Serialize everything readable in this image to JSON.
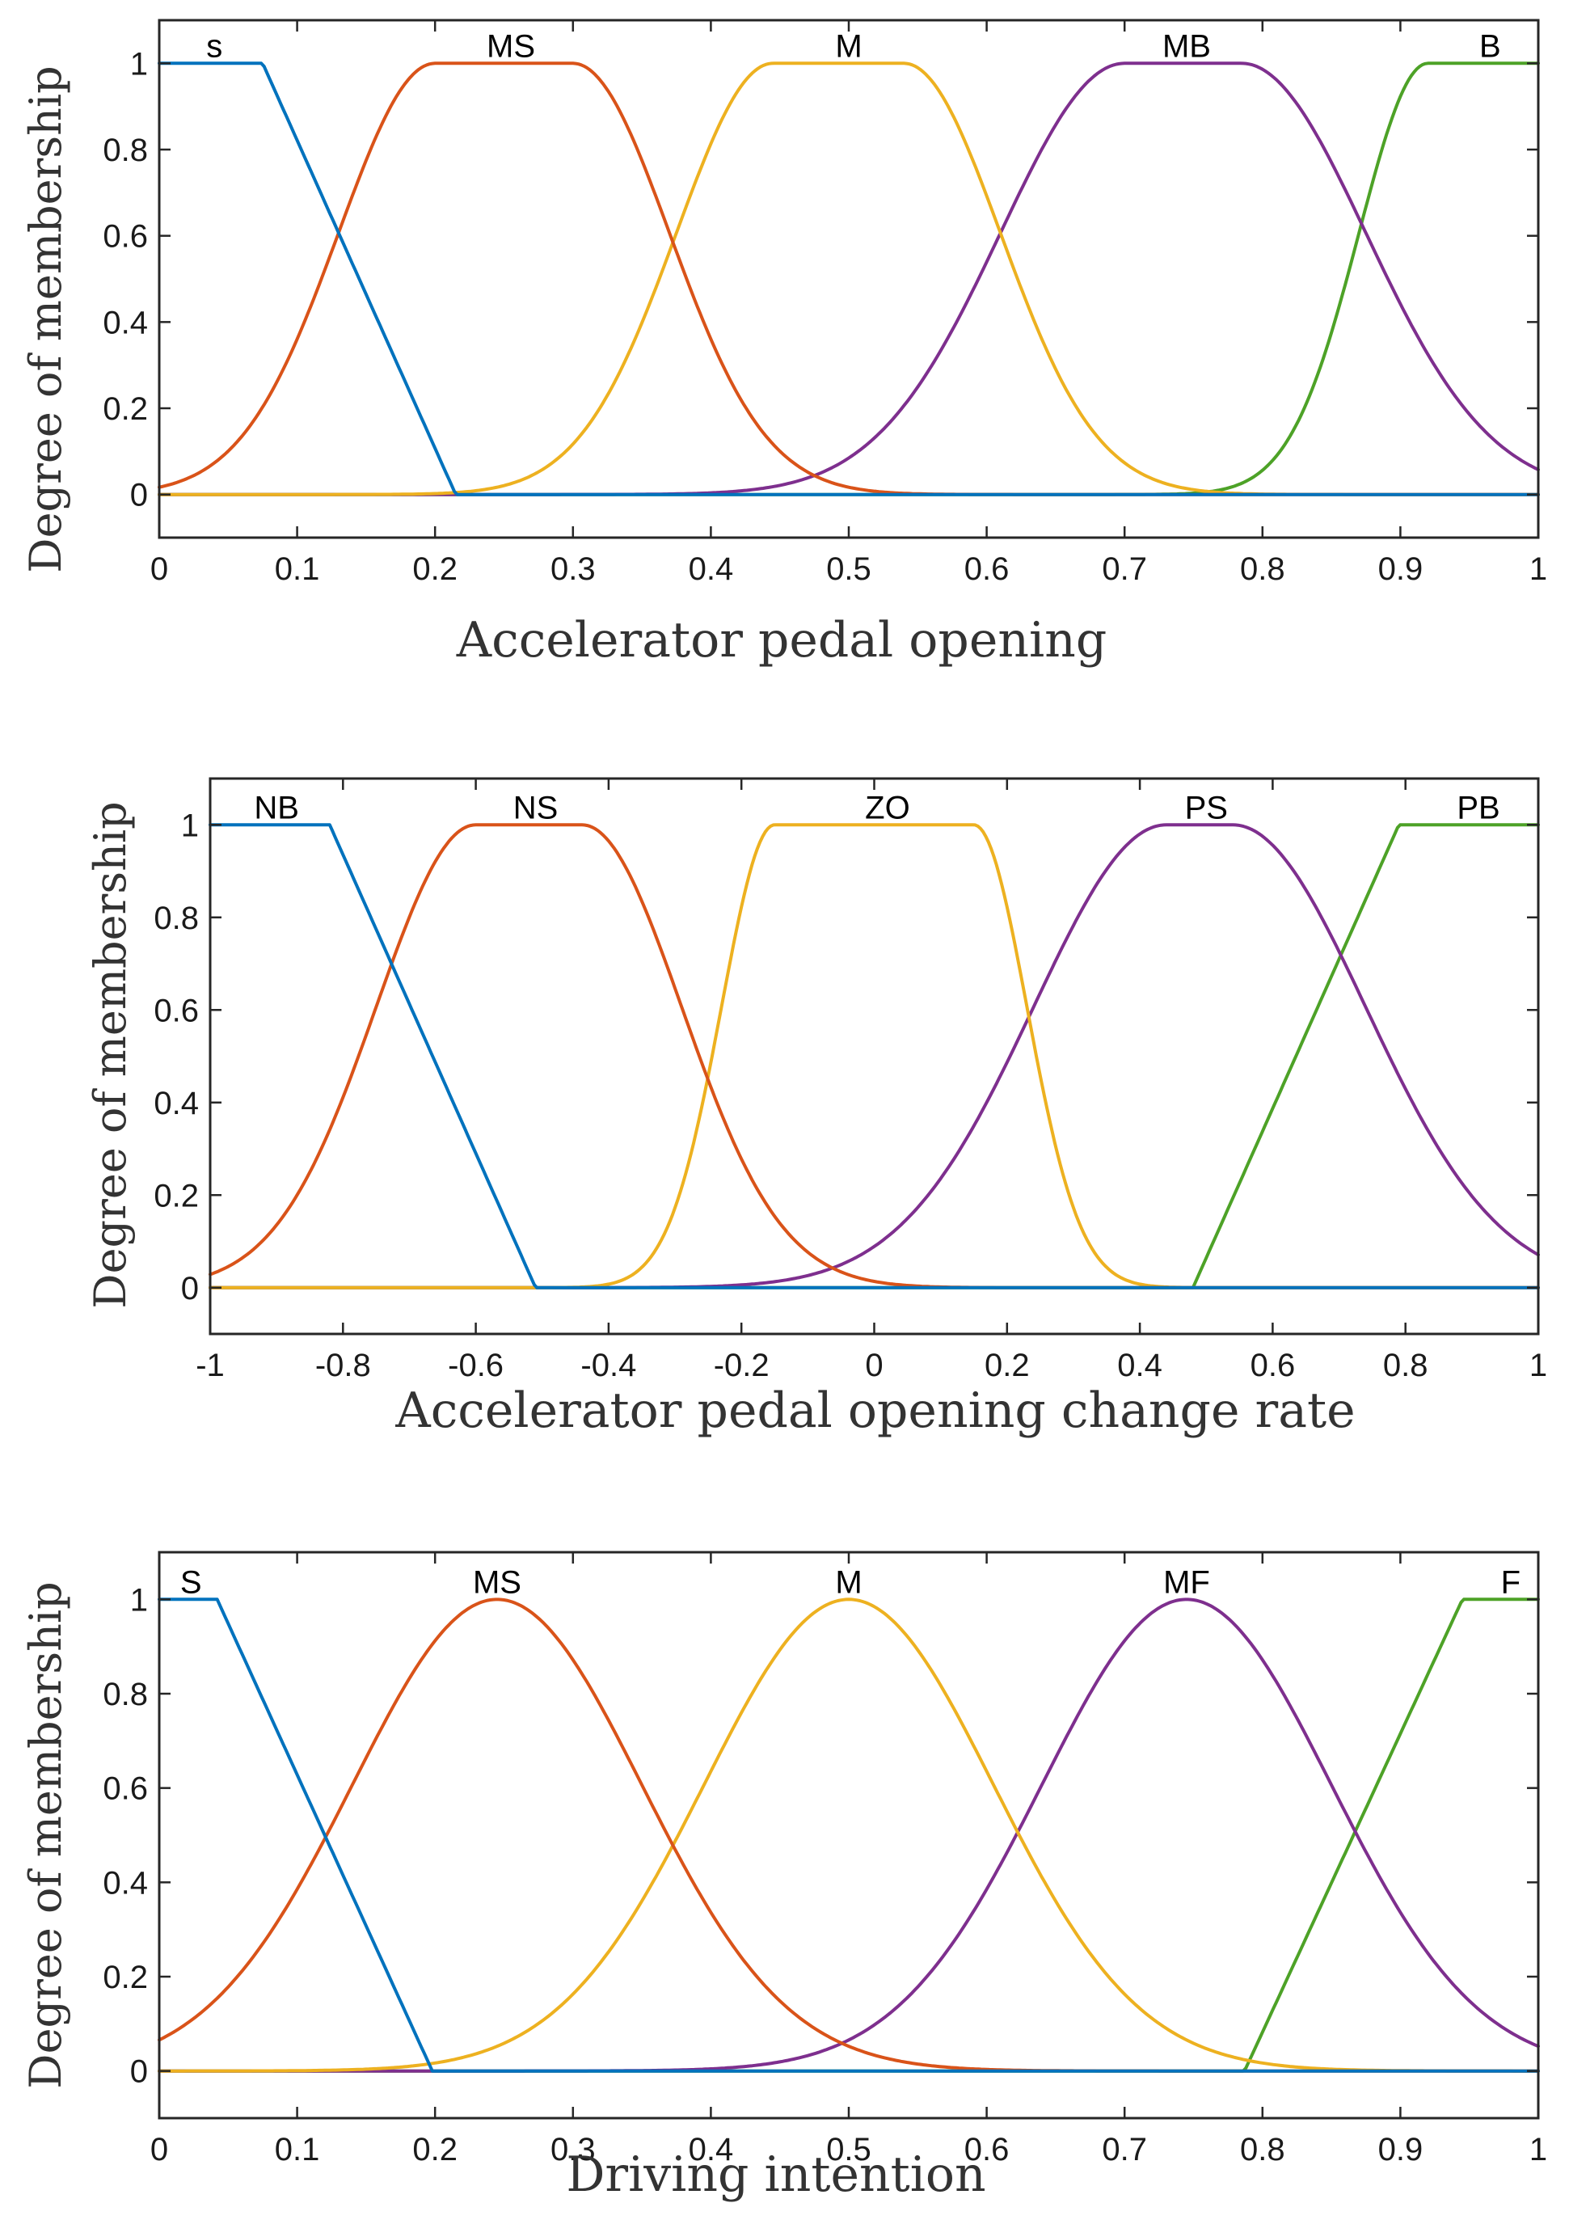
{
  "chart_data": [
    {
      "type": "line",
      "chart_kind": "fuzzy membership functions",
      "xlabel": "Accelerator pedal opening",
      "ylabel": "Degree of membership",
      "xlim": [
        0,
        1
      ],
      "ylim": [
        -0.1,
        1.1
      ],
      "xticks": [
        0,
        0.1,
        0.2,
        0.3,
        0.4,
        0.5,
        0.6,
        0.7,
        0.8,
        0.9,
        1
      ],
      "xtick_labels": [
        "0",
        "0.1",
        "0.2",
        "0.3",
        "0.4",
        "0.5",
        "0.6",
        "0.7",
        "0.8",
        "0.9",
        "1"
      ],
      "yticks": [
        0,
        0.2,
        0.4,
        0.6,
        0.8,
        1
      ],
      "ytick_labels": [
        "0",
        "0.2",
        "0.4",
        "0.6",
        "0.8",
        "1"
      ],
      "series": [
        {
          "name": "s",
          "color": "#0072BD",
          "mf": "linear-z",
          "params": [
            0.075,
            0.215
          ],
          "label_at": 0.04
        },
        {
          "name": "MS",
          "color": "#D95319",
          "mf": "gauss-flat",
          "params": [
            0.2,
            0.3,
            0.07,
            0.07
          ],
          "label_at": 0.255
        },
        {
          "name": "M",
          "color": "#EDB120",
          "mf": "gauss-flat",
          "params": [
            0.445,
            0.54,
            0.07,
            0.07
          ],
          "label_at": 0.5
        },
        {
          "name": "MB",
          "color": "#7E2F8E",
          "mf": "gauss-flat",
          "params": [
            0.7,
            0.785,
            0.09,
            0.09
          ],
          "label_at": 0.745
        },
        {
          "name": "B",
          "color": "#4DA227",
          "mf": "gauss-flat",
          "params": [
            0.92,
            1.1,
            0.05,
            0.05
          ],
          "label_at": 0.965
        }
      ]
    },
    {
      "type": "line",
      "chart_kind": "fuzzy membership functions",
      "xlabel": "Accelerator pedal opening change rate",
      "ylabel": "Degree of membership",
      "xlim": [
        -1,
        1
      ],
      "ylim": [
        -0.1,
        1.1
      ],
      "xticks": [
        -1,
        -0.8,
        -0.6,
        -0.4,
        -0.2,
        0,
        0.2,
        0.4,
        0.6,
        0.8,
        1
      ],
      "xtick_labels": [
        "-1",
        "-0.8",
        "-0.6",
        "-0.4",
        "-0.2",
        "0",
        "0.2",
        "0.4",
        "0.6",
        "0.8",
        "1"
      ],
      "yticks": [
        0,
        0.2,
        0.4,
        0.6,
        0.8,
        1
      ],
      "ytick_labels": [
        "0",
        "0.2",
        "0.4",
        "0.6",
        "0.8",
        "1"
      ],
      "series": [
        {
          "name": "NB",
          "color": "#0072BD",
          "mf": "linear-z",
          "params": [
            -0.82,
            -0.51
          ],
          "label_at": -0.9
        },
        {
          "name": "NS",
          "color": "#D95319",
          "mf": "gauss-flat",
          "params": [
            -0.6,
            -0.44,
            0.15,
            0.15
          ],
          "label_at": -0.51
        },
        {
          "name": "ZO",
          "color": "#EDB120",
          "mf": "gauss-flat",
          "params": [
            -0.15,
            0.15,
            0.08,
            0.08
          ],
          "label_at": 0.02
        },
        {
          "name": "PS",
          "color": "#7E2F8E",
          "mf": "gauss-flat",
          "params": [
            0.44,
            0.54,
            0.2,
            0.2
          ],
          "label_at": 0.5
        },
        {
          "name": "PB",
          "color": "#4DA227",
          "mf": "linear-s",
          "params": [
            0.48,
            0.79
          ],
          "label_at": 0.91
        }
      ]
    },
    {
      "type": "line",
      "chart_kind": "fuzzy membership functions",
      "xlabel": "Driving intention",
      "ylabel": "Degree of membership",
      "xlim": [
        0,
        1
      ],
      "ylim": [
        -0.1,
        1.1
      ],
      "xticks": [
        0,
        0.1,
        0.2,
        0.3,
        0.4,
        0.5,
        0.6,
        0.7,
        0.8,
        0.9,
        1
      ],
      "xtick_labels": [
        "0",
        "0.1",
        "0.2",
        "0.3",
        "0.4",
        "0.5",
        "0.6",
        "0.7",
        "0.8",
        "0.9",
        "1"
      ],
      "yticks": [
        0,
        0.2,
        0.4,
        0.6,
        0.8,
        1
      ],
      "ytick_labels": [
        "0",
        "0.2",
        "0.4",
        "0.6",
        "0.8",
        "1"
      ],
      "series": [
        {
          "name": "S",
          "color": "#0072BD",
          "mf": "linear-z",
          "params": [
            0.042,
            0.198
          ],
          "label_at": 0.023
        },
        {
          "name": "MS",
          "color": "#D95319",
          "mf": "gauss-flat",
          "params": [
            0.245,
            0.245,
            0.105,
            0.105
          ],
          "label_at": 0.245
        },
        {
          "name": "M",
          "color": "#EDB120",
          "mf": "gauss-flat",
          "params": [
            0.5,
            0.5,
            0.105,
            0.105
          ],
          "label_at": 0.5
        },
        {
          "name": "MF",
          "color": "#7E2F8E",
          "mf": "gauss-flat",
          "params": [
            0.745,
            0.745,
            0.105,
            0.105
          ],
          "label_at": 0.745
        },
        {
          "name": "F",
          "color": "#4DA227",
          "mf": "linear-s",
          "params": [
            0.787,
            0.945
          ],
          "label_at": 0.98
        }
      ]
    }
  ]
}
